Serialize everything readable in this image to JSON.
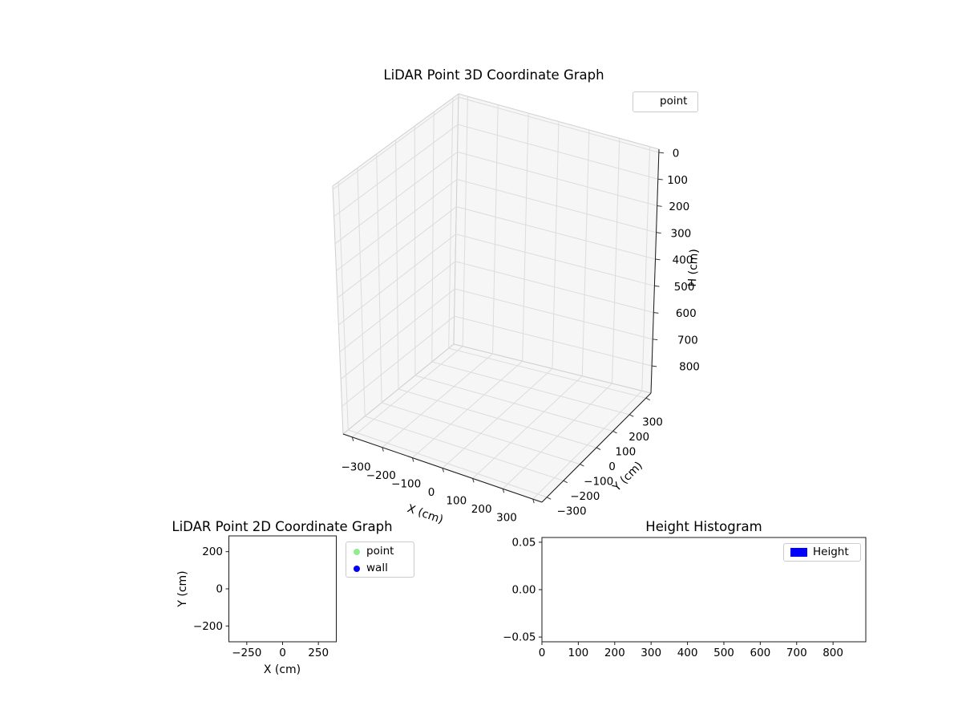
{
  "figure": {
    "background": "#ffffff",
    "text_color": "#000000",
    "axis_color": "#1a1a1a",
    "grid_color": "#dcdcdc",
    "pane_color": "#f6f6f6",
    "pane_edge_color": "#cfcfcf",
    "legend_border_color": "#cccccc"
  },
  "chart_data": [
    {
      "type": "scatter3d",
      "title": "LiDAR Point 3D Coordinate Graph",
      "xlabel": "X (cm)",
      "ylabel": "Y (cm)",
      "zlabel": "H (cm)",
      "xtick_values": [
        -300,
        -200,
        -100,
        0,
        100,
        200,
        300
      ],
      "xtick_labels": [
        "−300",
        "−200",
        "−100",
        "0",
        "100",
        "200",
        "300"
      ],
      "ytick_values": [
        -300,
        -200,
        -100,
        0,
        100,
        200,
        300
      ],
      "ytick_labels": [
        "−300",
        "−200",
        "−100",
        "0",
        "100",
        "200",
        "300"
      ],
      "ztick_values": [
        0,
        100,
        200,
        300,
        400,
        500,
        600,
        700,
        800
      ],
      "ztick_labels": [
        "0",
        "100",
        "200",
        "300",
        "400",
        "500",
        "600",
        "700",
        "800"
      ],
      "xlim": [
        -330,
        330
      ],
      "ylim": [
        -330,
        330
      ],
      "zlim": [
        -12,
        902
      ],
      "zaxis_inverted": true,
      "grid": true,
      "legend": {
        "position": "upper right",
        "entries": [
          {
            "label": "point"
          }
        ]
      },
      "series": [
        {
          "name": "point",
          "points": []
        }
      ]
    },
    {
      "type": "scatter",
      "title": "LiDAR Point 2D Coordinate Graph",
      "xlabel": "X (cm)",
      "ylabel": "Y (cm)",
      "xtick_values": [
        -250,
        0,
        250
      ],
      "xtick_labels": [
        "−250",
        "0",
        "250"
      ],
      "ytick_values": [
        200,
        0,
        -200
      ],
      "ytick_labels": [
        "200",
        "0",
        "−200"
      ],
      "xlim": [
        -375,
        375
      ],
      "ylim": [
        -285,
        285
      ],
      "grid": false,
      "legend": {
        "position": "outside upper right",
        "entries": [
          {
            "label": "point",
            "marker_color": "#90ee90"
          },
          {
            "label": "wall",
            "marker_color": "#0000ff"
          }
        ]
      },
      "series": [
        {
          "name": "point",
          "points": []
        },
        {
          "name": "wall",
          "points": []
        }
      ]
    },
    {
      "type": "bar",
      "title": "Height Histogram",
      "xlabel": "",
      "ylabel": "",
      "xtick_values": [
        0,
        100,
        200,
        300,
        400,
        500,
        600,
        700,
        800
      ],
      "xtick_labels": [
        "0",
        "100",
        "200",
        "300",
        "400",
        "500",
        "600",
        "700",
        "800"
      ],
      "ytick_values": [
        0.05,
        0,
        -0.05
      ],
      "ytick_labels": [
        "0.05",
        "0.00",
        "−0.05"
      ],
      "xlim": [
        0,
        890
      ],
      "ylim": [
        -0.055,
        0.055
      ],
      "grid": false,
      "legend": {
        "position": "upper right",
        "entries": [
          {
            "label": "Height",
            "marker_color": "#0000ff",
            "marker": "patch"
          }
        ]
      },
      "values": []
    }
  ]
}
